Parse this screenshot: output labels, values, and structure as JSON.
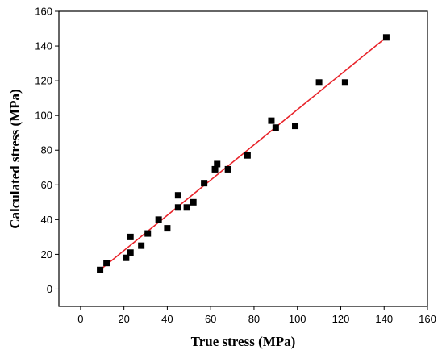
{
  "chart_data": {
    "type": "scatter",
    "xlabel": "True stress (MPa)",
    "ylabel": "Calculated stress (MPa)",
    "xlim": [
      -10,
      160
    ],
    "ylim": [
      -10,
      160
    ],
    "xticks": [
      "0",
      "20",
      "40",
      "60",
      "80",
      "100",
      "120",
      "140",
      "160"
    ],
    "yticks": [
      "0",
      "20",
      "40",
      "60",
      "80",
      "100",
      "120",
      "140",
      "160"
    ],
    "grid": false,
    "legend": "none",
    "points": [
      {
        "x": 9,
        "y": 11
      },
      {
        "x": 12,
        "y": 15
      },
      {
        "x": 21,
        "y": 18
      },
      {
        "x": 23,
        "y": 30
      },
      {
        "x": 23,
        "y": 21
      },
      {
        "x": 28,
        "y": 25
      },
      {
        "x": 31,
        "y": 32
      },
      {
        "x": 36,
        "y": 40
      },
      {
        "x": 40,
        "y": 35
      },
      {
        "x": 45,
        "y": 47
      },
      {
        "x": 45,
        "y": 54
      },
      {
        "x": 49,
        "y": 47
      },
      {
        "x": 52,
        "y": 50
      },
      {
        "x": 57,
        "y": 61
      },
      {
        "x": 62,
        "y": 69
      },
      {
        "x": 63,
        "y": 72
      },
      {
        "x": 68,
        "y": 69
      },
      {
        "x": 77,
        "y": 77
      },
      {
        "x": 88,
        "y": 97
      },
      {
        "x": 90,
        "y": 93
      },
      {
        "x": 99,
        "y": 94
      },
      {
        "x": 110,
        "y": 119
      },
      {
        "x": 122,
        "y": 119
      },
      {
        "x": 141,
        "y": 145
      }
    ],
    "fit_line": {
      "x1": 8,
      "y1": 10,
      "x2": 141,
      "y2": 145
    },
    "colors": {
      "points": "#000000",
      "fit_line": "#e8232a",
      "axis": "#000000"
    }
  }
}
